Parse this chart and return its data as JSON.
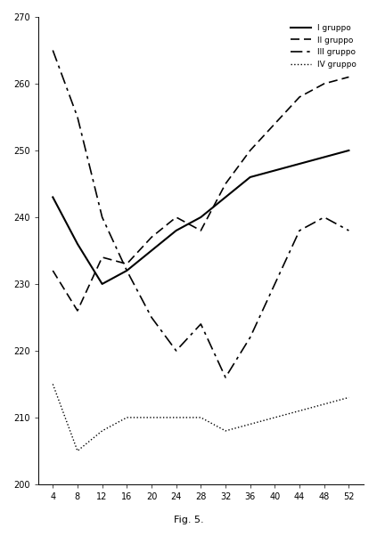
{
  "title": "Fig. 5.",
  "xlabel": "",
  "ylabel": "",
  "ylim": [
    200,
    270
  ],
  "yticks": [
    200,
    210,
    220,
    230,
    240,
    250,
    260,
    270
  ],
  "xticks": [
    4,
    8,
    12,
    16,
    20,
    24,
    28,
    32,
    36,
    40,
    44,
    48,
    52
  ],
  "legend_labels": [
    "I gruppo",
    "II gruppo",
    "III gruppo",
    "IV gruppo"
  ],
  "group1_x": [
    4,
    8,
    12,
    16,
    20,
    24,
    28,
    32,
    36,
    40,
    44,
    48,
    52
  ],
  "group1_y": [
    243,
    236,
    230,
    232,
    235,
    238,
    240,
    243,
    246,
    247,
    248,
    249,
    250
  ],
  "group2_x": [
    4,
    8,
    12,
    16,
    20,
    24,
    28,
    32,
    36,
    40,
    44,
    48,
    52
  ],
  "group2_y": [
    232,
    226,
    234,
    233,
    237,
    240,
    238,
    245,
    250,
    254,
    258,
    260,
    261
  ],
  "group3_x": [
    4,
    8,
    12,
    16,
    20,
    24,
    28,
    32,
    36,
    40,
    44,
    48,
    52
  ],
  "group3_y": [
    265,
    255,
    240,
    232,
    225,
    220,
    224,
    216,
    222,
    230,
    238,
    240,
    238
  ],
  "group4_x": [
    4,
    8,
    12,
    16,
    20,
    24,
    28,
    32,
    36,
    40,
    44,
    48,
    52
  ],
  "group4_y": [
    215,
    205,
    208,
    210,
    210,
    210,
    210,
    208,
    209,
    210,
    211,
    212,
    213
  ],
  "background_color": "#ffffff"
}
